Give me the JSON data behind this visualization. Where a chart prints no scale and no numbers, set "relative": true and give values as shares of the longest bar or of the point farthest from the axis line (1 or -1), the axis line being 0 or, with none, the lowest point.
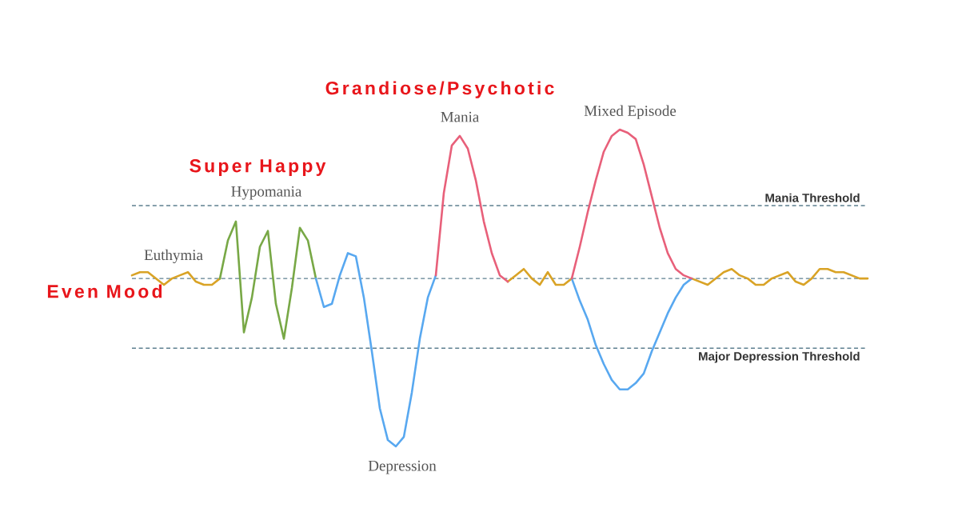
{
  "chart_data": {
    "type": "line",
    "relative": true,
    "categories": [
      null,
      null,
      null,
      null,
      null,
      null,
      null,
      null,
      null,
      null,
      null,
      null,
      null,
      null,
      null,
      null,
      null,
      null,
      null,
      null,
      null,
      null,
      null,
      null,
      null,
      null,
      null,
      null,
      null,
      null,
      null,
      null,
      null,
      null,
      null,
      null,
      null,
      null,
      null,
      null,
      null,
      null,
      null,
      null,
      null,
      null,
      null,
      null,
      null,
      null,
      null,
      null,
      null,
      null,
      null,
      null,
      null,
      null,
      null,
      null,
      null,
      null,
      null,
      null,
      null,
      null,
      null,
      null,
      null,
      null,
      null,
      null,
      null,
      null,
      null,
      null,
      null,
      null,
      null,
      null,
      null,
      null,
      null,
      null,
      null,
      null,
      null,
      null,
      null,
      null,
      null,
      null,
      null
    ],
    "series": [
      {
        "color": "#d9a326",
        "values": [
          0.54,
          0.55,
          0.55,
          0.53,
          0.51,
          0.53,
          0.54,
          0.55,
          0.52,
          0.51,
          0.51,
          0.53,
          null,
          null,
          null,
          null,
          null,
          null,
          null,
          null,
          null,
          null,
          null,
          null,
          null,
          null,
          null,
          null,
          null,
          null,
          null,
          null,
          null,
          null,
          null,
          null,
          null,
          null,
          null,
          null,
          null,
          null,
          null,
          null,
          null,
          null,
          null,
          0.52,
          0.54,
          0.56,
          0.53,
          0.51,
          0.55,
          0.51,
          0.51,
          0.53,
          null,
          null,
          null,
          null,
          null,
          null,
          null,
          null,
          null,
          null,
          null,
          null,
          null,
          null,
          0.53,
          0.52,
          0.51,
          0.53,
          0.55,
          0.56,
          0.54,
          0.53,
          0.51,
          0.51,
          0.53,
          0.54,
          0.55,
          0.52,
          0.51,
          0.53,
          0.56,
          0.56,
          0.55,
          0.55,
          0.54,
          0.53,
          0.53
        ]
      },
      {
        "color": "#78a846",
        "values": [
          null,
          null,
          null,
          null,
          null,
          null,
          null,
          null,
          null,
          null,
          null,
          0.53,
          0.65,
          0.71,
          0.36,
          0.47,
          0.63,
          0.68,
          0.45,
          0.34,
          0.5,
          0.69,
          0.65,
          0.53,
          null,
          null,
          null,
          null,
          null,
          null,
          null,
          null,
          null,
          null,
          null,
          null,
          null,
          null,
          null,
          null,
          null,
          null,
          null,
          null,
          null,
          null,
          null,
          null,
          null,
          null,
          null,
          null,
          null,
          null,
          null,
          null,
          null,
          null,
          null,
          null,
          null,
          null,
          null,
          null,
          null,
          null,
          null,
          null,
          null,
          null,
          null,
          null,
          null,
          null,
          null,
          null,
          null,
          null,
          null,
          null,
          null,
          null,
          null,
          null,
          null,
          null,
          null,
          null,
          null,
          null,
          null,
          null,
          null
        ]
      },
      {
        "color": "#58a8f0",
        "values": [
          null,
          null,
          null,
          null,
          null,
          null,
          null,
          null,
          null,
          null,
          null,
          null,
          null,
          null,
          null,
          null,
          null,
          null,
          null,
          null,
          null,
          null,
          null,
          0.53,
          0.44,
          0.45,
          0.54,
          0.61,
          0.6,
          0.47,
          0.3,
          0.12,
          0.02,
          0,
          0.03,
          0.17,
          0.34,
          0.47,
          0.54,
          null,
          null,
          null,
          null,
          null,
          null,
          null,
          null,
          null,
          null,
          null,
          null,
          null,
          null,
          null,
          null,
          0.53,
          0.46,
          0.4,
          0.32,
          0.26,
          0.21,
          0.18,
          0.18,
          0.2,
          0.23,
          0.3,
          0.36,
          0.42,
          0.47,
          0.51,
          0.53,
          null,
          null,
          null,
          null,
          null,
          null,
          null,
          null,
          null,
          null,
          null,
          null,
          null,
          null,
          null,
          null,
          null,
          null,
          null,
          null,
          null,
          null
        ]
      },
      {
        "color": "#e8607a",
        "values": [
          null,
          null,
          null,
          null,
          null,
          null,
          null,
          null,
          null,
          null,
          null,
          null,
          null,
          null,
          null,
          null,
          null,
          null,
          null,
          null,
          null,
          null,
          null,
          null,
          null,
          null,
          null,
          null,
          null,
          null,
          null,
          null,
          null,
          null,
          null,
          null,
          null,
          null,
          0.54,
          0.8,
          0.95,
          0.98,
          0.94,
          0.84,
          0.71,
          0.61,
          0.54,
          0.52,
          null,
          null,
          null,
          null,
          null,
          null,
          null,
          0.53,
          0.63,
          0.74,
          0.84,
          0.93,
          0.98,
          1,
          0.99,
          0.97,
          0.89,
          0.79,
          0.69,
          0.61,
          0.56,
          0.54,
          0.53,
          null,
          null,
          null,
          null,
          null,
          null,
          null,
          null,
          null,
          null,
          null,
          null,
          null,
          null,
          null,
          null,
          null,
          null,
          null,
          null,
          null,
          null
        ]
      }
    ],
    "ref_lines": [
      {
        "axis": "y",
        "value": 0.76,
        "label": "Mania Threshold",
        "color": "#5e8090",
        "line_style": "dashed"
      },
      {
        "axis": "y",
        "value": 0.53,
        "color": "#5e8090",
        "line_style": "dashed"
      },
      {
        "axis": "y",
        "value": 0.31,
        "label": "Major Depression Threshold",
        "color": "#5e8090",
        "line_style": "dashed"
      }
    ],
    "annotations": [
      "Grandiose/Psychotic",
      "Super Happy",
      "Even Mood",
      "Euthymia",
      "Hypomania",
      "Mania",
      "Mixed Episode",
      "Depression"
    ]
  }
}
